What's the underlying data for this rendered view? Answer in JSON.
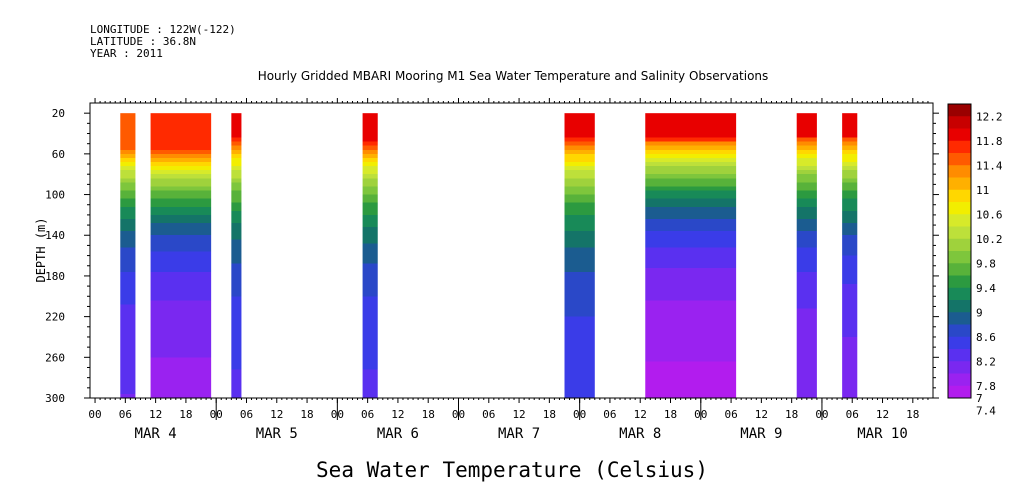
{
  "header": {
    "longitude": "LONGITUDE : 122W(-122)",
    "latitude": "LATITUDE : 36.8N",
    "year": "YEAR : 2011"
  },
  "chart_data": {
    "type": "heatmap",
    "title": "Hourly Gridded MBARI Mooring M1 Sea Water Temperature and Salinity Observations",
    "xlabel": "Sea Water Temperature (Celsius)",
    "ylabel": "DEPTH (m)",
    "y_ticks": [
      20,
      60,
      100,
      140,
      180,
      220,
      260,
      300
    ],
    "ylim": [
      10,
      300
    ],
    "y_inverted": true,
    "x_hour_ticks": [
      "00",
      "06",
      "12",
      "18",
      "00",
      "06",
      "12",
      "18",
      "00",
      "06",
      "12",
      "18",
      "00",
      "06",
      "12",
      "18",
      "00",
      "06",
      "12",
      "18",
      "00",
      "06",
      "12",
      "18",
      "00",
      "06",
      "12",
      "18"
    ],
    "x_day_labels": [
      "MAR  4",
      "MAR  5",
      "MAR  6",
      "MAR  7",
      "MAR  8",
      "MAR  9",
      "MAR 10"
    ],
    "x_range_hours": [
      -1,
      166
    ],
    "colorbar_levels": [
      12.2,
      11.8,
      11.4,
      11,
      10.6,
      10.2,
      9.8,
      9.4,
      9,
      8.6,
      8.2,
      7.8,
      7.4,
      7
    ],
    "colorbar_colors": [
      "#9a0000",
      "#c80000",
      "#e80000",
      "#ff2a00",
      "#ff5a00",
      "#ff8c00",
      "#ffb000",
      "#ffd700",
      "#f2ee00",
      "#d7ea2a",
      "#bde03a",
      "#9fd23c",
      "#7ec63c",
      "#58b23a",
      "#2c9a40",
      "#188a58",
      "#147468",
      "#1b5c90",
      "#2a48c8",
      "#3a3ce8",
      "#5a30f0",
      "#7a28f0",
      "#9a22f0",
      "#b21cee"
    ],
    "data_segments": [
      {
        "start_hour": 5,
        "end_hour": 8,
        "surface_temp": 11.4,
        "bottom_temp": 7.6,
        "thermocline_depth": 75
      },
      {
        "start_hour": 11,
        "end_hour": 23,
        "surface_temp": 11.6,
        "bottom_temp": 7.3,
        "thermocline_depth": 80
      },
      {
        "start_hour": 27,
        "end_hour": 29,
        "surface_temp": 11.8,
        "bottom_temp": 7.8,
        "thermocline_depth": 60
      },
      {
        "start_hour": 53,
        "end_hour": 56,
        "surface_temp": 11.8,
        "bottom_temp": 7.8,
        "thermocline_depth": 65
      },
      {
        "start_hour": 93,
        "end_hour": 99,
        "surface_temp": 11.8,
        "bottom_temp": 7.9,
        "thermocline_depth": 60
      },
      {
        "start_hour": 109,
        "end_hour": 127,
        "surface_temp": 11.9,
        "bottom_temp": 7.1,
        "thermocline_depth": 55
      },
      {
        "start_hour": 139,
        "end_hour": 143,
        "surface_temp": 11.8,
        "bottom_temp": 7.4,
        "thermocline_depth": 55
      },
      {
        "start_hour": 148,
        "end_hour": 151,
        "surface_temp": 11.8,
        "bottom_temp": 7.5,
        "thermocline_depth": 55
      }
    ],
    "grid": false,
    "legend": "right colorbar"
  }
}
